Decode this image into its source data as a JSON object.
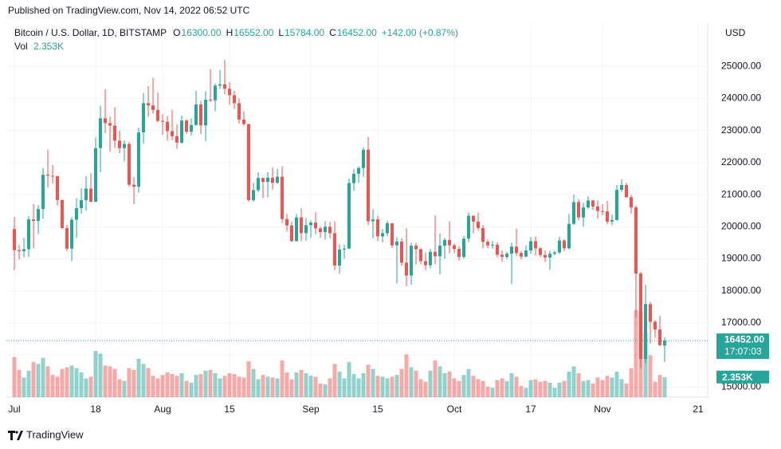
{
  "header": "Published on TradingView.com, Nov 14, 2022 06:52 UTC",
  "footer": "TradingView",
  "chart_data": {
    "type": "candlestick",
    "title": "Bitcoin / U.S. Dollar, 1D, BITSTAMP",
    "legend_ohlc": [
      {
        "key": "O",
        "value": "16300.00"
      },
      {
        "key": "H",
        "value": "16552.00"
      },
      {
        "key": "L",
        "value": "15784.00"
      },
      {
        "key": "C",
        "value": "16452.00"
      }
    ],
    "change": "+142.00 (+0.87%)",
    "volume_name": "Vol",
    "volume_value": "2.353K",
    "currency": "USD",
    "last_price_label": "16452.00",
    "countdown": "17:07:03",
    "last_volume_label": "2.353K",
    "up_color": "#26a69a",
    "down_color": "#ef5350",
    "grid": true,
    "ylim": [
      14690,
      26320
    ],
    "yticks": [
      {
        "value": 15000,
        "label": "15000.00"
      },
      {
        "value": 16000,
        "label": "16000.00"
      },
      {
        "value": 17000,
        "label": "17000.00"
      },
      {
        "value": 18000,
        "label": "18000.00"
      },
      {
        "value": 19000,
        "label": "19000.00"
      },
      {
        "value": 20000,
        "label": "20000.00"
      },
      {
        "value": 21000,
        "label": "21000.00"
      },
      {
        "value": 22000,
        "label": "22000.00"
      },
      {
        "value": 23000,
        "label": "23000.00"
      },
      {
        "value": 24000,
        "label": "24000.00"
      },
      {
        "value": 25000,
        "label": "25000.00"
      }
    ],
    "xlim": [
      -1.67,
      145
    ],
    "xticks": [
      {
        "value": 0,
        "label": "Jul"
      },
      {
        "value": 17,
        "label": "18"
      },
      {
        "value": 31,
        "label": "Aug"
      },
      {
        "value": 45,
        "label": "15"
      },
      {
        "value": 62,
        "label": "Sep"
      },
      {
        "value": 76,
        "label": "15"
      },
      {
        "value": 92,
        "label": "Oct"
      },
      {
        "value": 108,
        "label": "17"
      },
      {
        "value": 123,
        "label": "Nov"
      },
      {
        "value": 143,
        "label": "21"
      }
    ],
    "volume_lim": [
      0,
      14000
    ],
    "open": [
      19930,
      19270,
      19240,
      19300,
      20230,
      20180,
      20550,
      21620,
      21590,
      21580,
      20830,
      19960,
      19320,
      20220,
      20580,
      20830,
      21190,
      20780,
      22450,
      23380,
      23230,
      23150,
      22680,
      22450,
      22580,
      21310,
      21250,
      22940,
      23850,
      23780,
      23640,
      23300,
      23270,
      22980,
      22820,
      22620,
      23310,
      22960,
      23170,
      23810,
      23160,
      23960,
      23940,
      24400,
      24440,
      24300,
      24100,
      23850,
      23340,
      23200,
      20830,
      21140,
      21520,
      21400,
      21530,
      21370,
      21560,
      20240,
      20040,
      19550,
      20290,
      19800,
      20050,
      20130,
      19950,
      19830,
      20000,
      19800,
      18790,
      19290,
      19320,
      21360,
      21650,
      21830,
      22400,
      20170,
      20230,
      19700,
      19800,
      20110,
      19420,
      19540,
      18880,
      18480,
      19410,
      19300,
      18930,
      18800,
      19220,
      19080,
      19410,
      19590,
      19420,
      19310,
      19060,
      19630,
      20340,
      20160,
      19960,
      19530,
      19420,
      19440,
      19130,
      19060,
      19160,
      19380,
      19180,
      19070,
      19260,
      19550,
      19330,
      19120,
      19040,
      19160,
      19200,
      19570,
      19330,
      20090,
      20770,
      20290,
      20600,
      20820,
      20630,
      20490,
      20480,
      20160,
      20210,
      21150,
      21300,
      20920,
      20600,
      18540,
      15880,
      17590,
      17040,
      16800,
      16300
    ],
    "high": [
      20300,
      19430,
      19650,
      20330,
      20700,
      20670,
      21830,
      22400,
      21930,
      21580,
      20850,
      20060,
      20300,
      20880,
      21200,
      21580,
      21670,
      22780,
      23770,
      24280,
      23430,
      23730,
      22990,
      22690,
      22650,
      21550,
      23090,
      24170,
      24380,
      24640,
      24180,
      23500,
      23450,
      23640,
      23200,
      23460,
      23350,
      23380,
      24240,
      23920,
      24230,
      24920,
      24460,
      24890,
      25200,
      24500,
      24240,
      24000,
      23600,
      23200,
      21370,
      21700,
      21520,
      21700,
      21850,
      21810,
      21880,
      20400,
      20160,
      20400,
      20580,
      20270,
      20200,
      20450,
      20000,
      20180,
      20150,
      20170,
      19450,
      19440,
      21500,
      21800,
      21880,
      22480,
      22790,
      20550,
      20340,
      19930,
      20190,
      20110,
      19670,
      19640,
      19950,
      19500,
      19500,
      19330,
      19200,
      19310,
      20350,
      19790,
      19650,
      20170,
      19480,
      19400,
      19710,
      20450,
      20360,
      20440,
      20060,
      19600,
      19550,
      19520,
      19260,
      19220,
      19500,
      19950,
      19250,
      19420,
      19680,
      19700,
      19360,
      19260,
      19250,
      19250,
      19690,
      19610,
      20400,
      21000,
      20870,
      20750,
      20950,
      20830,
      20820,
      20700,
      20800,
      20380,
      21300,
      21470,
      21370,
      21000,
      20660,
      18590,
      18200,
      17650,
      17100,
      17230,
      16552
    ],
    "low": [
      18650,
      18980,
      19050,
      19060,
      19330,
      19780,
      20250,
      21220,
      21350,
      20660,
      19930,
      19240,
      18930,
      19650,
      20400,
      20500,
      20760,
      20770,
      21700,
      22920,
      22340,
      22460,
      22290,
      22040,
      21250,
      20700,
      21060,
      22580,
      23420,
      23530,
      23250,
      22860,
      22680,
      22700,
      22430,
      22590,
      22890,
      22840,
      23150,
      22880,
      22670,
      23880,
      23600,
      24290,
      24120,
      23800,
      23670,
      23210,
      23150,
      20780,
      20780,
      21080,
      20890,
      20920,
      21160,
      21330,
      20120,
      19850,
      19530,
      19550,
      19550,
      19560,
      19650,
      19770,
      19650,
      19600,
      19640,
      18650,
      18540,
      19000,
      19300,
      21120,
      21360,
      21560,
      20050,
      19640,
      19550,
      19510,
      19700,
      19340,
      18230,
      18780,
      18150,
      18200,
      18820,
      18830,
      18640,
      18700,
      18830,
      18520,
      19000,
      19170,
      19170,
      18950,
      19000,
      19520,
      19790,
      19880,
      19330,
      19330,
      19320,
      19040,
      18900,
      18990,
      18210,
      19090,
      18980,
      19050,
      19160,
      19100,
      19050,
      18900,
      18660,
      19110,
      19150,
      19240,
      19290,
      20060,
      20200,
      20000,
      20560,
      20520,
      20250,
      20350,
      20080,
      20050,
      20190,
      21080,
      20900,
      20410,
      17170,
      15590,
      15750,
      16360,
      16540,
      16280,
      15784
    ],
    "close": [
      19270,
      19240,
      19300,
      20230,
      20180,
      20550,
      21620,
      21590,
      21580,
      20830,
      19960,
      19320,
      20220,
      20580,
      20830,
      21190,
      20780,
      22450,
      23380,
      23230,
      23150,
      22680,
      22450,
      22580,
      21310,
      21250,
      22940,
      23850,
      23780,
      23640,
      23300,
      23270,
      22980,
      22820,
      22620,
      23310,
      22960,
      23170,
      23810,
      23160,
      23960,
      23940,
      24400,
      24440,
      24300,
      24100,
      23850,
      23340,
      23200,
      20830,
      21140,
      21520,
      21400,
      21530,
      21370,
      21560,
      20240,
      20040,
      19550,
      20290,
      19800,
      20050,
      20130,
      19950,
      19830,
      20000,
      19800,
      18790,
      19290,
      19320,
      21360,
      21650,
      21830,
      22400,
      20170,
      20230,
      19700,
      19800,
      20110,
      19420,
      19540,
      18880,
      18480,
      19410,
      19300,
      18930,
      18800,
      19220,
      19080,
      19410,
      19590,
      19420,
      19310,
      19060,
      19630,
      20340,
      20160,
      19960,
      19530,
      19420,
      19440,
      19130,
      19060,
      19160,
      19380,
      19180,
      19070,
      19260,
      19550,
      19330,
      19120,
      19040,
      19160,
      19200,
      19570,
      19330,
      20090,
      20770,
      20290,
      20600,
      20820,
      20630,
      20490,
      20480,
      20160,
      20210,
      21150,
      21300,
      20920,
      20600,
      18540,
      15880,
      17590,
      17040,
      16800,
      16310,
      16452
    ],
    "volume": [
      4700,
      3200,
      2300,
      3100,
      4100,
      3900,
      4600,
      3600,
      2600,
      2400,
      3300,
      3500,
      3700,
      3400,
      2900,
      2200,
      2400,
      5400,
      5100,
      3700,
      3600,
      3300,
      2100,
      1900,
      3400,
      3200,
      4500,
      3900,
      3400,
      2500,
      2200,
      2600,
      2900,
      2700,
      2500,
      2800,
      1900,
      1700,
      2600,
      2700,
      3100,
      3200,
      2800,
      2200,
      2500,
      2800,
      2700,
      2400,
      2300,
      4200,
      3300,
      2100,
      2600,
      2400,
      2300,
      2200,
      4300,
      2900,
      2100,
      2900,
      3200,
      2800,
      2500,
      2400,
      1600,
      1500,
      2200,
      3900,
      3000,
      2200,
      4100,
      2700,
      2200,
      2800,
      3800,
      3300,
      2500,
      2400,
      2200,
      2400,
      2600,
      3300,
      5000,
      3500,
      3100,
      2100,
      1800,
      3100,
      4300,
      3600,
      2800,
      3000,
      2200,
      1900,
      2600,
      3300,
      2500,
      2100,
      1900,
      1200,
      1100,
      2000,
      2200,
      1900,
      2800,
      2400,
      1300,
      1100,
      2000,
      2100,
      1800,
      1900,
      1700,
      1100,
      1700,
      1900,
      3000,
      3600,
      2800,
      1900,
      2000,
      1600,
      2300,
      2000,
      2500,
      2300,
      3000,
      2100,
      1600,
      3400,
      10200,
      10000,
      7500,
      4900,
      1800,
      2600,
      2353
    ]
  }
}
